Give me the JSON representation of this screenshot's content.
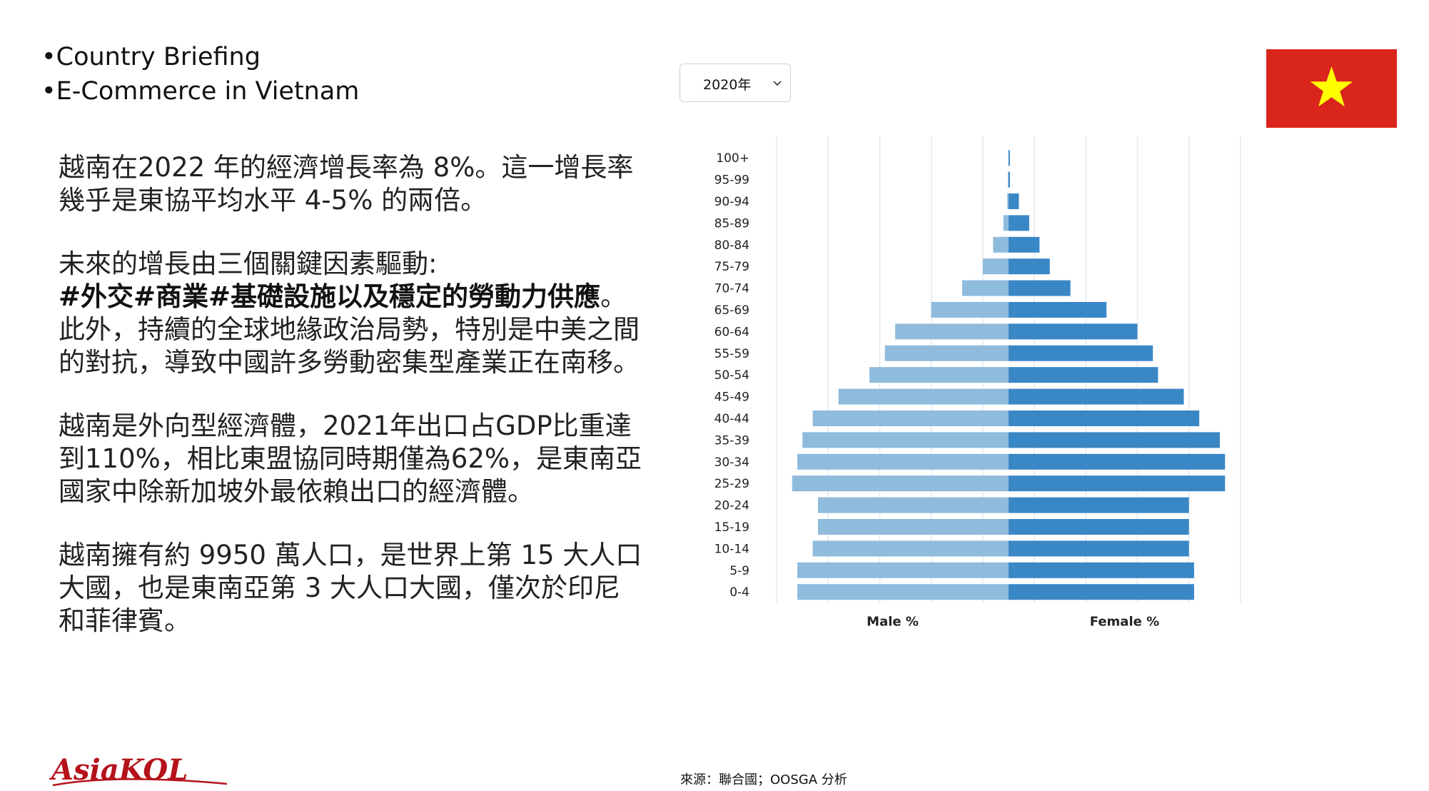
{
  "header": {
    "line1": "•Country Briefing",
    "line2": "•E-Commerce in  Vietnam"
  },
  "year_select": {
    "value": "2020年"
  },
  "flag": {
    "red": "#da251d",
    "star": "#ffff00"
  },
  "paragraphs": {
    "p1": "越南在2022 年的經濟增長率為 8%。這一增長率幾乎是東協平均水平 4-5% 的兩倍。",
    "p2_intro": "未來的增長由三個關鍵因素驅動:",
    "p2_bold": "#外交#商業#基礎設施以及穩定的勞動力供應",
    "p2_rest": "。此外，持續的全球地緣政治局勢，特別是中美之間的對抗，導致中國許多勞動密集型產業正在南移。",
    "p3": "越南是外向型經濟體，2021年出口占GDP比重達到110%，相比東盟協同時期僅為62%，是東南亞國家中除新加坡外最依賴出口的經濟體。",
    "p4": "越南擁有約 9950 萬人口，是世界上第 15 大人口大國，也是東南亞第 3 大人口大國，僅次於印尼和菲律賓。"
  },
  "source": "來源：聯合國；OOSGA 分析",
  "logo": "AsiaKOL",
  "chart_data": {
    "type": "bar",
    "orientation": "horizontal",
    "categories": [
      "100+",
      "95-99",
      "90-94",
      "85-89",
      "80-84",
      "75-79",
      "70-74",
      "65-69",
      "60-64",
      "55-59",
      "50-54",
      "45-49",
      "40-44",
      "35-39",
      "30-34",
      "25-29",
      "20-24",
      "15-19",
      "10-14",
      "5-9",
      "0-4"
    ],
    "series": [
      {
        "name": "Male %",
        "color": "#8fbbdd",
        "values": [
          0.01,
          0.03,
          0.05,
          0.2,
          0.6,
          1.0,
          1.8,
          3.0,
          4.4,
          4.8,
          5.4,
          6.6,
          7.6,
          8.0,
          8.2,
          8.4,
          7.4,
          7.4,
          7.6,
          8.2,
          8.2
        ]
      },
      {
        "name": "Female %",
        "color": "#3a87c6",
        "values": [
          0.05,
          0.05,
          0.4,
          0.8,
          1.2,
          1.6,
          2.4,
          3.8,
          5.0,
          5.6,
          5.8,
          6.8,
          7.4,
          8.2,
          8.4,
          8.4,
          7.0,
          7.0,
          7.0,
          7.2,
          7.2
        ]
      }
    ],
    "xlabel_left": "Male %",
    "xlabel_right": "Female %",
    "xlim": [
      -9,
      9
    ],
    "grid": true
  }
}
